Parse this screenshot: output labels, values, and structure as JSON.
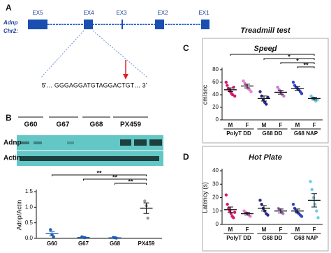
{
  "panel_labels": [
    "A",
    "B",
    "C",
    "D"
  ],
  "gene_diagram": {
    "gene": "Adnp",
    "chromosome": "Chr2:",
    "exons": [
      "EX5",
      "EX4",
      "EX3",
      "EX2",
      "EX1"
    ],
    "sequence": "5'… GGGAGGATGTAGGACTGT… 3'"
  },
  "blot": {
    "lanes": [
      "G60",
      "G67",
      "G68",
      "PX459"
    ],
    "rows": [
      "Adnp",
      "Actin"
    ]
  },
  "section_title": "Treadmill test",
  "chart_data": [
    {
      "type": "dot",
      "ylabel": "Adnp/Actin",
      "categories": [
        "G60",
        "G67",
        "G68",
        "PX459"
      ],
      "colors": [
        "#1f5fb5",
        "#1f5fb5",
        "#1f5fb5",
        "#999999"
      ],
      "points": [
        [
          0.28,
          0.12,
          0.05
        ],
        [
          0.05,
          0.03,
          0.02
        ],
        [
          0.03,
          0.02,
          0.01
        ],
        [
          1.2,
          1.05,
          0.65
        ]
      ],
      "means": [
        0.15,
        0.03,
        0.02,
        0.97
      ],
      "errors": [
        0.07,
        0.01,
        0.005,
        0.17
      ],
      "ylim": [
        0,
        1.5
      ],
      "yticks": [
        {
          "value": 0,
          "label": "0.0"
        },
        {
          "value": 0.5,
          "label": "0.5"
        },
        {
          "value": 1,
          "label": "1.0"
        },
        {
          "value": 1.5,
          "label": "1.5"
        }
      ],
      "brackets": [
        {
          "text": "**",
          "from": 0,
          "to": 3
        },
        {
          "text": "**",
          "from": 1,
          "to": 3
        },
        {
          "text": "**",
          "from": 2,
          "to": 3
        }
      ]
    },
    {
      "type": "dot",
      "title": "Speed",
      "ylabel": "cm/sec",
      "categories": [
        "M",
        "F",
        "M",
        "F",
        "M",
        "F"
      ],
      "group_labels": [
        "PolyT DD",
        "G68 DD",
        "G68 NAP"
      ],
      "colors": [
        "#d6186f",
        "#e680d0",
        "#2a2a8a",
        "#c77ad6",
        "#3344cc",
        "#66cdee"
      ],
      "points": [
        [
          60,
          55,
          50,
          48,
          45,
          42,
          40,
          52,
          38
        ],
        [
          62,
          58,
          55,
          50,
          48,
          45
        ],
        [
          45,
          38,
          32,
          28,
          25,
          36
        ],
        [
          52,
          48,
          44,
          40,
          38
        ],
        [
          60,
          55,
          52,
          50,
          48,
          45,
          42
        ],
        [
          38,
          35,
          33,
          30,
          32
        ]
      ],
      "means": [
        48,
        54,
        34,
        44,
        50,
        34
      ],
      "errors": [
        3,
        3,
        4,
        3,
        3,
        2
      ],
      "ylim": [
        0,
        80
      ],
      "yticks": [
        0,
        20,
        40,
        60,
        80
      ],
      "brackets": [
        {
          "text": "*",
          "from": 0,
          "to": 5
        },
        {
          "text": "*",
          "from": 2,
          "to": 5
        },
        {
          "text": "*",
          "from": 3,
          "to": 5
        },
        {
          "text": "**",
          "from": 4,
          "to": 5
        }
      ]
    },
    {
      "type": "dot",
      "title": "Hot Plate",
      "ylabel": "Latency (s)",
      "categories": [
        "M",
        "F",
        "M",
        "F",
        "M",
        "F"
      ],
      "group_labels": [
        "PolyT DD",
        "G68 DD",
        "G68 NAP"
      ],
      "colors": [
        "#d6186f",
        "#e680d0",
        "#2a2a8a",
        "#c77ad6",
        "#3344cc",
        "#66cdee"
      ],
      "points": [
        [
          22,
          15,
          12,
          10,
          8,
          6,
          5,
          9
        ],
        [
          10,
          9,
          8,
          7,
          6
        ],
        [
          18,
          15,
          12,
          10,
          8,
          7
        ],
        [
          12,
          11,
          9,
          8
        ],
        [
          15,
          12,
          10,
          9,
          8,
          7,
          6
        ],
        [
          32,
          26,
          20,
          15,
          10,
          5
        ]
      ],
      "means": [
        11,
        8,
        12,
        10,
        10,
        18
      ],
      "errors": [
        2,
        1,
        2,
        1.5,
        1.5,
        5
      ],
      "ylim": [
        0,
        40
      ],
      "yticks": [
        0,
        10,
        20,
        30,
        40
      ],
      "brackets": []
    }
  ]
}
